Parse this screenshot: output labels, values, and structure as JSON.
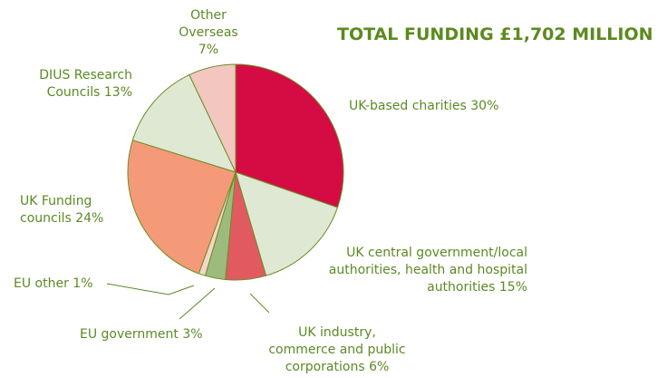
{
  "chart_data": {
    "type": "pie",
    "title": "TOTAL FUNDING £1,702 MILLION",
    "categories": [
      "UK-based charities",
      "UK central government/local authorities, health and hospital authorities",
      "UK industry, commerce and public corporations",
      "EU government",
      "EU other",
      "UK Funding councils",
      "DIUS Research Councils",
      "Other Overseas"
    ],
    "values": [
      30,
      15,
      6,
      3,
      1,
      24,
      13,
      7
    ],
    "value_labels": [
      "30%",
      "15%",
      "6%",
      "3%",
      "1%",
      "24%",
      "13%",
      "7%"
    ],
    "colors": [
      "#d50c43",
      "#dfe8d3",
      "#e05a60",
      "#9dbb7d",
      "#f6d5c9",
      "#f59a78",
      "#dfe8d3",
      "#f3c6c0"
    ]
  }
}
